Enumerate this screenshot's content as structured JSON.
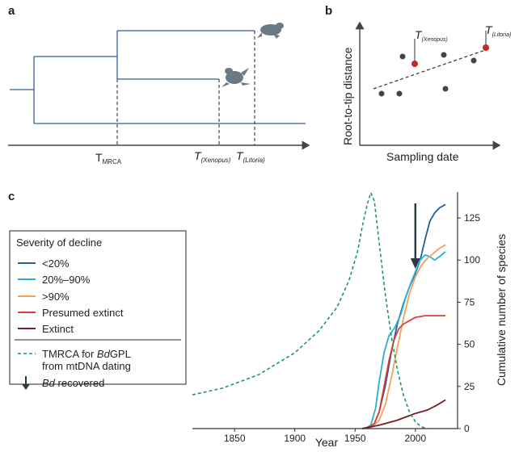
{
  "panels": {
    "a": {
      "label": "a",
      "axis_labels": [
        {
          "main": "T",
          "sub": "MRCA"
        },
        {
          "main": "T",
          "sub": "(Xenopus)"
        },
        {
          "main": "T",
          "sub": "(Litoria)"
        }
      ],
      "icons": [
        "frog-litoria-icon",
        "frog-xenopus-icon"
      ]
    },
    "b": {
      "label": "b",
      "xlabel": "Sampling date",
      "ylabel": "Root-to-tip distance",
      "highlight": [
        {
          "main": "T",
          "sub": "(Xenopus)"
        },
        {
          "main": "T",
          "sub": "(Litoria)"
        }
      ]
    },
    "c": {
      "label": "c",
      "xlabel": "Year",
      "ylabel": "Cumulative number of species",
      "legend": {
        "title": "Severity of decline",
        "items": [
          {
            "label": "<20%",
            "color": "#1f5fa0"
          },
          {
            "label": "20%–90%",
            "color": "#2ab0d0"
          },
          {
            "label": ">90%",
            "color": "#f2a060"
          },
          {
            "label": "Presumed extinct",
            "color": "#e03c32"
          },
          {
            "label": "Extinct",
            "color": "#7a1a22"
          }
        ],
        "tmrca_line1_pre": "TMRCA for ",
        "tmrca_line1_it": "Bd",
        "tmrca_line1_post": "GPL",
        "tmrca_line2": "from mtDNA dating",
        "tmrca_color": "#1a9a5a",
        "recovered_it": "Bd",
        "recovered_post": " recovered"
      }
    }
  },
  "chart_data": {
    "type": "line",
    "xlabel": "Year",
    "ylabel": "Cumulative number of species",
    "xlim": [
      1815,
      2035
    ],
    "ylim": [
      0,
      135
    ],
    "x_ticks": [
      1850,
      1900,
      1950,
      2000
    ],
    "y_ticks": [
      0,
      25,
      50,
      75,
      100,
      125
    ],
    "arrow_year": 2000,
    "series": [
      {
        "name": "<20%",
        "color": "#1f5fa0",
        "x": [
          1956,
          1962,
          1966,
          1970,
          1975,
          1980,
          1985,
          1990,
          1995,
          2000,
          2004,
          2008,
          2012,
          2016,
          2020,
          2025
        ],
        "y": [
          0,
          1,
          3,
          10,
          25,
          45,
          62,
          74,
          84,
          92,
          100,
          112,
          123,
          128,
          131,
          133
        ]
      },
      {
        "name": "20%–90%",
        "color": "#2ab0d0",
        "x": [
          1958,
          1963,
          1967,
          1970,
          1974,
          1978,
          1983,
          1988,
          1992,
          1996,
          2000,
          2004,
          2008,
          2012,
          2016,
          2020,
          2025
        ],
        "y": [
          0,
          2,
          12,
          28,
          45,
          55,
          60,
          68,
          78,
          86,
          93,
          100,
          103,
          102,
          100,
          102,
          105
        ]
      },
      {
        "name": ">90%",
        "color": "#f2a060",
        "x": [
          1958,
          1964,
          1970,
          1975,
          1980,
          1985,
          1990,
          1995,
          2000,
          2005,
          2010,
          2015,
          2020,
          2025
        ],
        "y": [
          0,
          1,
          5,
          14,
          30,
          48,
          65,
          80,
          90,
          97,
          101,
          104,
          107,
          109
        ]
      },
      {
        "name": "Presumed extinct",
        "color": "#e03c32",
        "x": [
          1956,
          1962,
          1966,
          1970,
          1974,
          1978,
          1982,
          1986,
          1990,
          1995,
          2000,
          2008,
          2016,
          2025
        ],
        "y": [
          0,
          1,
          3,
          10,
          25,
          40,
          52,
          59,
          62,
          64,
          66,
          67,
          67,
          67
        ]
      },
      {
        "name": "Extinct",
        "color": "#7a1a22",
        "x": [
          1956,
          1970,
          1985,
          2000,
          2010,
          2018,
          2025
        ],
        "y": [
          0,
          2,
          5,
          9,
          11,
          14,
          17
        ]
      },
      {
        "name": "TMRCA for BdGPL from mtDNA dating",
        "color": "#1a9a5a",
        "dashed": true,
        "x": [
          1815,
          1840,
          1870,
          1900,
          1920,
          1935,
          1945,
          1952,
          1956,
          1960,
          1963,
          1966,
          1970,
          1975,
          1980,
          1985,
          1990,
          1995,
          2000,
          2005,
          2010
        ],
        "y": [
          20,
          24,
          32,
          45,
          58,
          72,
          88,
          105,
          120,
          133,
          140,
          135,
          110,
          80,
          55,
          35,
          20,
          10,
          4,
          1,
          0
        ]
      }
    ]
  }
}
